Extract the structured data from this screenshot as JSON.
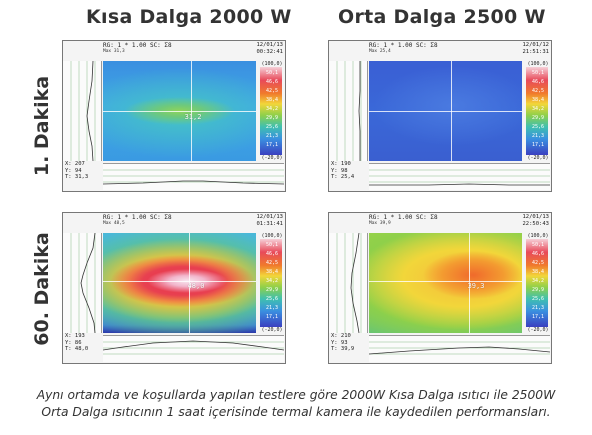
{
  "titles": {
    "col1": "Kısa Dalga 2000 W",
    "col2": "Orta Dalga 2500 W"
  },
  "rows": {
    "row1": "1. Dakika",
    "row2": "60. Dakika"
  },
  "panels": {
    "p11": {
      "header": "RG: 1  *  1.00  SC: Σ8",
      "max": "Max 31,3",
      "date": "12/01/13",
      "time": "00:32:41",
      "x": "X: 207",
      "y": "Y: 94",
      "t": "T:  31,3",
      "spot": "31,2",
      "scale_top": "(100,0)",
      "scale_bottom": "(-20,0)",
      "scale_labels": [
        "50,1",
        "46,6",
        "42,5",
        "38,4",
        "34,2",
        "29,9",
        "25,6",
        "21,3",
        "17,1",
        "12,8"
      ],
      "colors": {
        "bg": "#3fa3e6",
        "hot": "#7ad06a"
      }
    },
    "p12": {
      "header": "RG: 1  *  1.00  SC: Σ8",
      "max": "Max 25,4",
      "date": "12/01/12",
      "time": "21:51:31",
      "x": "X: 190",
      "y": "Y: 98",
      "t": "T:  25,4",
      "spot": "",
      "scale_top": "(100,0)",
      "scale_bottom": "(-20,0)",
      "scale_labels": [
        "50,1",
        "46,6",
        "42,5",
        "38,4",
        "34,2",
        "29,9",
        "25,6",
        "21,3",
        "17,1",
        "12,8"
      ],
      "colors": {
        "bg": "#3a63d6",
        "hot": "#4a7ae0"
      }
    },
    "p21": {
      "header": "RG: 1  *  1.00  SC: Σ8",
      "max": "Max 48,5",
      "date": "12/01/13",
      "time": "01:31:41",
      "x": "X: 193",
      "y": "Y: 86",
      "t": "T:  48,0",
      "spot": "48,0",
      "scale_top": "(100,0)",
      "scale_bottom": "(-20,0)",
      "scale_labels": [
        "50,1",
        "46,6",
        "42,5",
        "38,4",
        "34,2",
        "29,9",
        "25,6",
        "21,3",
        "17,1",
        "12,8"
      ],
      "colors": {
        "bg": "#3fb0e0",
        "hot": "#e8364a"
      }
    },
    "p22": {
      "header": "RG: 1  *  1.00  SC: Σ8",
      "max": "Max 39,9",
      "date": "12/01/13",
      "time": "22:50:43",
      "x": "X: 210",
      "y": "Y: 93",
      "t": "T:  39,9",
      "spot": "39,3",
      "scale_top": "(100,0)",
      "scale_bottom": "(-20,0)",
      "scale_labels": [
        "50,1",
        "46,6",
        "42,5",
        "38,4",
        "34,2",
        "29,9",
        "25,6",
        "21,3",
        "17,1",
        "12,8"
      ],
      "colors": {
        "bg": "#9bd64a",
        "hot": "#f07a2c"
      }
    }
  },
  "caption": {
    "line1": "Aynı ortamda ve koşullarda yapılan testlere göre 2000W Kısa Dalga ısıtıcı ile 2500W",
    "line2": "Orta Dalga ısıtıcının 1 saat içerisinde termal kamera ile kaydedilen performansları."
  }
}
